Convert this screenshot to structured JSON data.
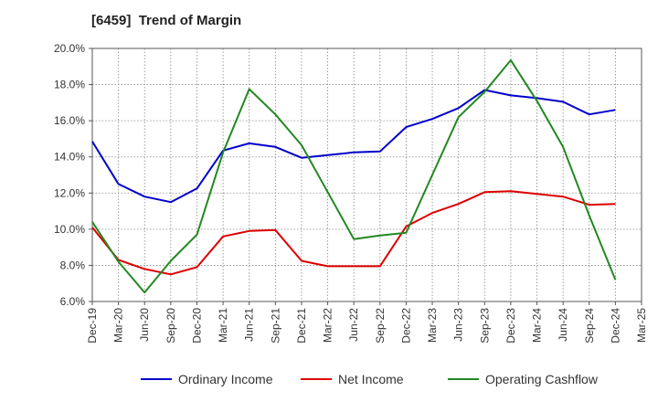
{
  "chart_data": {
    "type": "line",
    "title": "[6459]  Trend of Margin",
    "xlabel": "",
    "ylabel": "",
    "x": [
      "Dec-19",
      "Mar-20",
      "Jun-20",
      "Sep-20",
      "Dec-20",
      "Mar-21",
      "Jun-21",
      "Sep-21",
      "Dec-21",
      "Mar-22",
      "Jun-22",
      "Sep-22",
      "Dec-22",
      "Mar-23",
      "Jun-23",
      "Sep-23",
      "Dec-23",
      "Mar-24",
      "Jun-24",
      "Sep-24",
      "Dec-24",
      "Mar-25"
    ],
    "ylim": [
      6.0,
      20.0
    ],
    "yticks": [
      6.0,
      8.0,
      10.0,
      12.0,
      14.0,
      16.0,
      18.0,
      20.0
    ],
    "ytick_suffix": "%",
    "grid": true,
    "legend_position": "bottom",
    "series": [
      {
        "name": "Ordinary Income",
        "color": "#0000cc",
        "values": [
          14.85,
          12.5,
          11.8,
          11.5,
          12.25,
          14.35,
          14.75,
          14.55,
          13.95,
          14.1,
          14.25,
          14.3,
          15.65,
          16.1,
          16.7,
          17.7,
          17.4,
          17.25,
          17.05,
          16.35,
          16.6,
          null
        ]
      },
      {
        "name": "Net Income",
        "color": "#dd0000",
        "values": [
          10.1,
          8.3,
          7.8,
          7.5,
          7.9,
          9.6,
          9.9,
          9.95,
          8.25,
          7.95,
          7.95,
          7.95,
          10.15,
          10.9,
          11.4,
          12.05,
          12.1,
          11.95,
          11.8,
          11.35,
          11.4,
          null
        ]
      },
      {
        "name": "Operating Cashflow",
        "color": "#228822",
        "values": [
          10.4,
          8.2,
          6.5,
          8.25,
          9.7,
          14.25,
          17.75,
          16.35,
          14.65,
          12.05,
          9.45,
          9.65,
          9.8,
          13.0,
          16.2,
          17.6,
          19.35,
          17.1,
          14.55,
          10.75,
          7.2,
          null
        ]
      }
    ]
  }
}
